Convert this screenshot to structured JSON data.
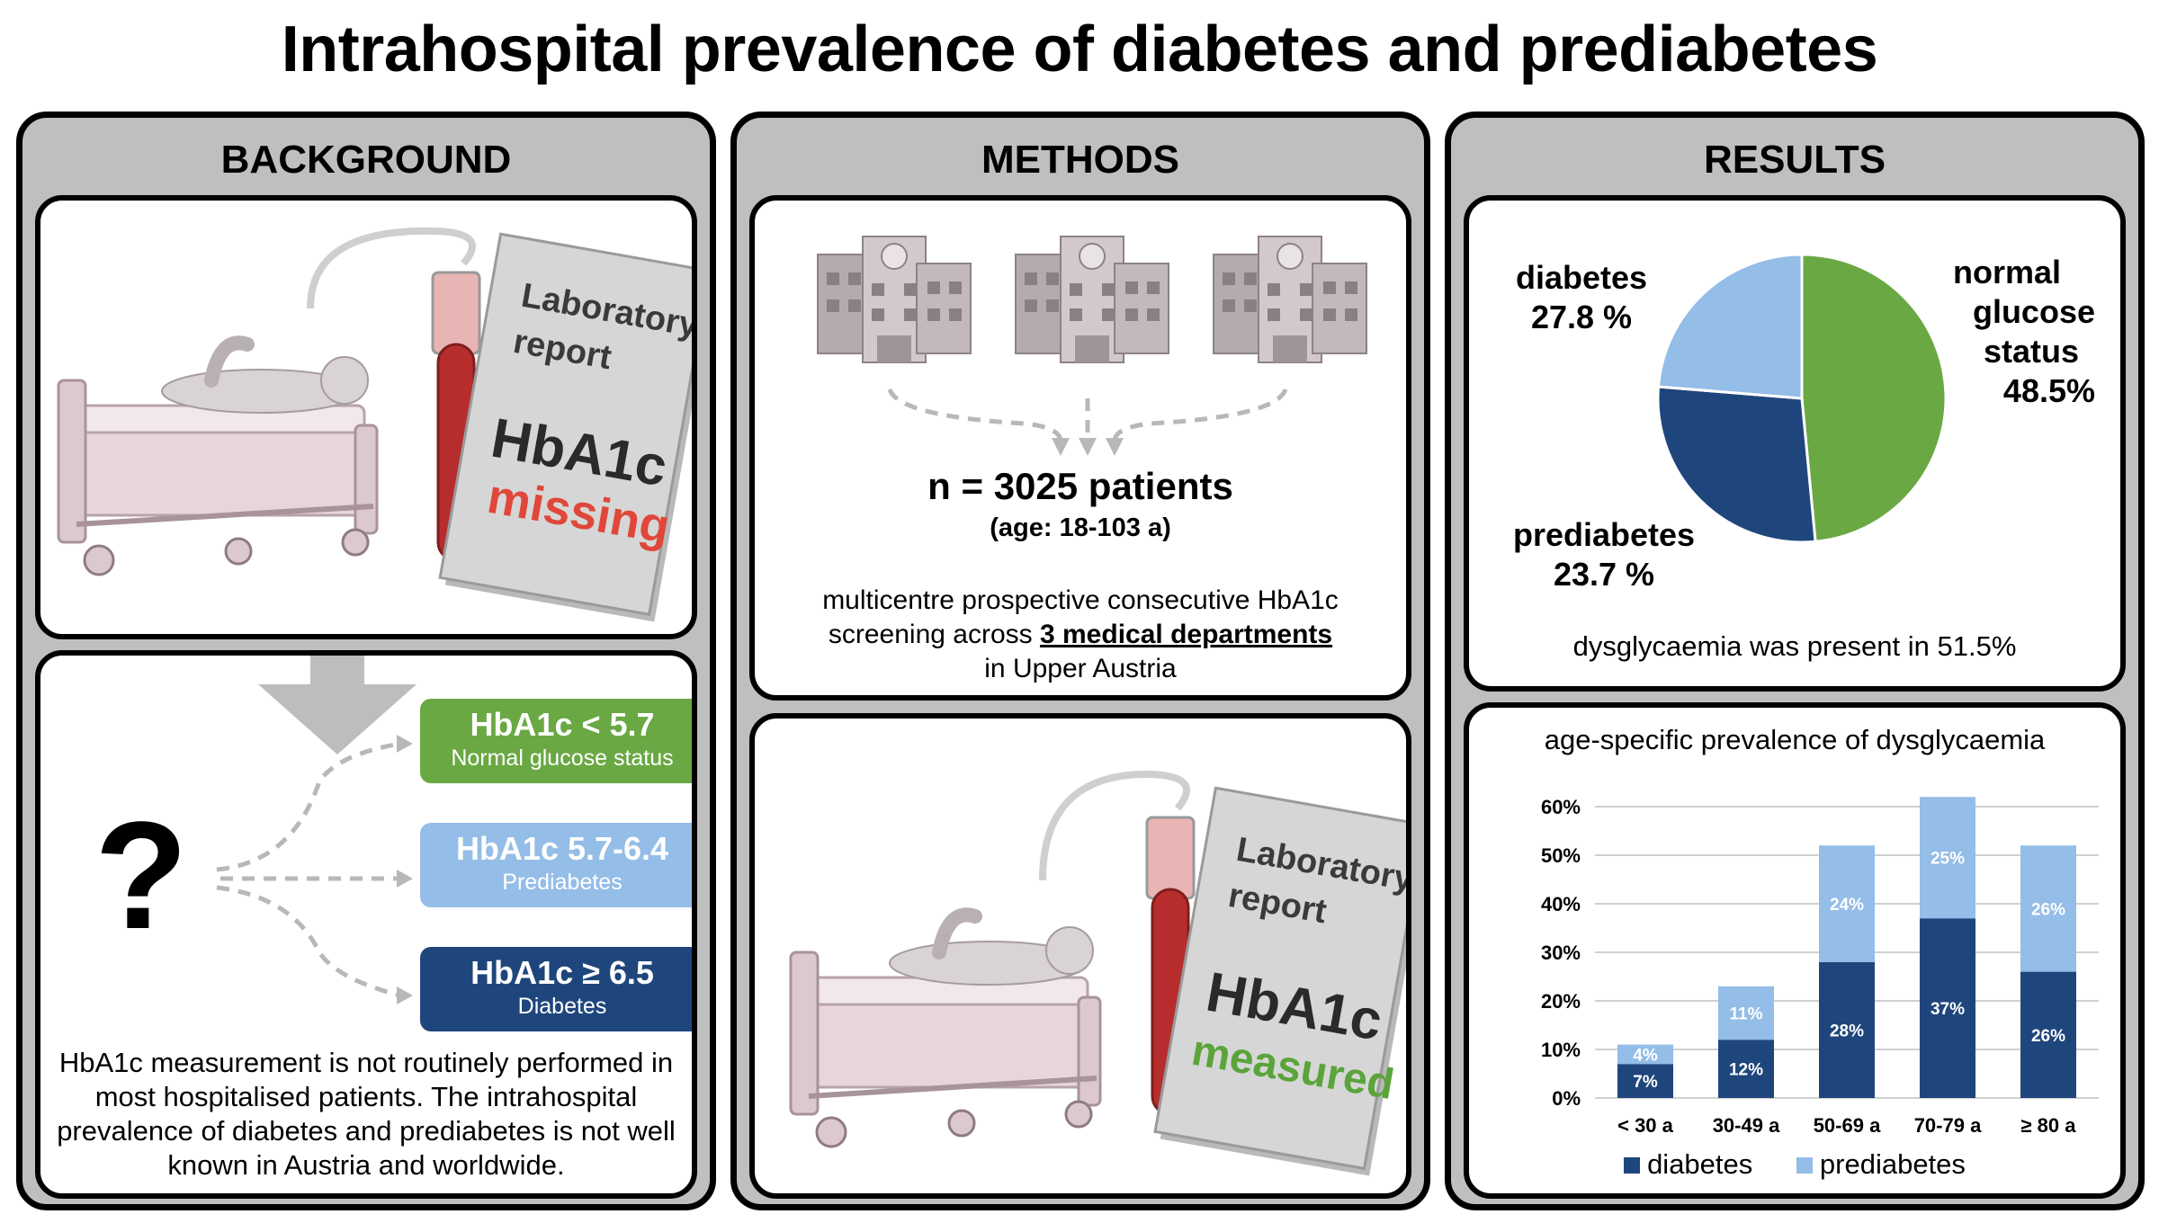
{
  "title": "Intrahospital prevalence of diabetes and prediabetes",
  "background": {
    "heading": "BACKGROUND",
    "report": {
      "line1": "Laboratory",
      "line2": "report",
      "test": "HbA1c",
      "status": "missing"
    },
    "question_mark": "?",
    "categories": [
      {
        "threshold": "HbA1c < 5.7",
        "label": "Normal glucose status",
        "color": "#6aa843"
      },
      {
        "threshold": "HbA1c  5.7-6.4",
        "label": "Prediabetes",
        "color": "#94bde8"
      },
      {
        "threshold": "HbA1c  ≥  6.5",
        "label": "Diabetes",
        "color": "#1f467c"
      }
    ],
    "text_lines": [
      "HbA1c measurement is not routinely performed in",
      "most hospitalised patients. The intrahospital",
      "prevalence of diabetes and prediabetes is not well",
      "known in Austria and worldwide."
    ]
  },
  "methods": {
    "heading": "METHODS",
    "n_label": "n = 3025 patients",
    "age_label": "(age: 18-103 a)",
    "desc_line1": "multicentre prospective consecutive HbA1c",
    "desc_line2_pre": "screening across ",
    "desc_line2_emph": "3 medical departments",
    "desc_line3": "in Upper Austria",
    "report": {
      "line1": "Laboratory",
      "line2": "report",
      "test": "HbA1c",
      "status": "measured"
    }
  },
  "results": {
    "heading": "RESULTS",
    "pie_labels": {
      "diabetes_name": "diabetes",
      "diabetes_value": "27.8 %",
      "normal_line1": "normal",
      "normal_line2": "glucose",
      "normal_line3": "status",
      "normal_value": "48.5%",
      "prediabetes_name": "prediabetes",
      "prediabetes_value": "23.7 %"
    },
    "dysglycaemia_note": "dysglycaemia was present in 51.5%",
    "bar_title": "age-specific prevalence of dysglycaemia",
    "legend": [
      "diabetes",
      "prediabetes"
    ]
  },
  "colors": {
    "normal": "#6aa843",
    "prediabetes": "#94bde8",
    "diabetes": "#1f467c",
    "missing": "#e0473a",
    "measured": "#5aa43a"
  },
  "chart_data": [
    {
      "type": "pie",
      "categories": [
        "normal glucose status",
        "diabetes",
        "prediabetes"
      ],
      "values": [
        48.5,
        27.8,
        23.7
      ]
    },
    {
      "type": "bar",
      "title": "age-specific prevalence of dysglycaemia",
      "stacked": true,
      "categories": [
        "< 30 a",
        "30-49 a",
        "50-69 a",
        "70-79 a",
        "≥ 80 a"
      ],
      "series": [
        {
          "name": "diabetes",
          "values": [
            7,
            12,
            28,
            37,
            26
          ],
          "labels": [
            "7%",
            "12%",
            "28%",
            "37%",
            "26%"
          ]
        },
        {
          "name": "prediabetes",
          "values": [
            4,
            11,
            24,
            25,
            26
          ],
          "labels": [
            "4%",
            "11%",
            "24%",
            "25%",
            "26%"
          ]
        }
      ],
      "yticks": [
        "0%",
        "10%",
        "20%",
        "30%",
        "40%",
        "50%",
        "60%"
      ],
      "ylim": [
        0,
        60
      ],
      "grid": true,
      "legend_position": "bottom"
    }
  ]
}
